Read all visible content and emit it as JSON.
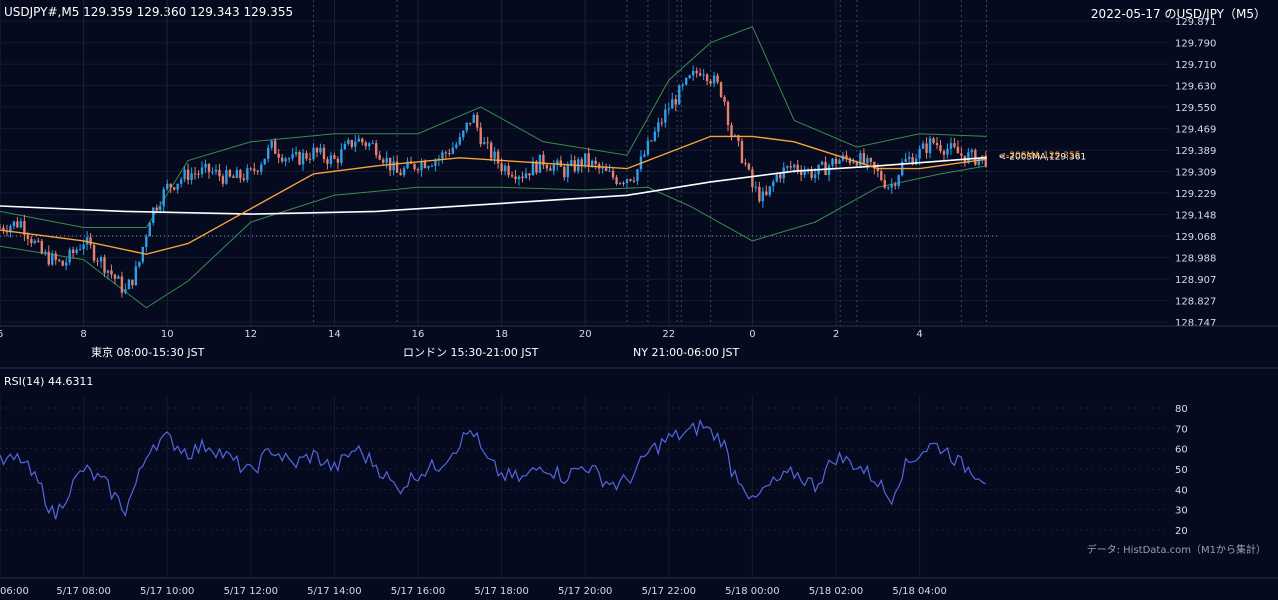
{
  "header": {
    "symbol_ohlc": "USDJPY#,M5 129.359 129.360 129.343 129.355",
    "date_title": "2022-05-17 のUSD/JPY（M5）"
  },
  "sessions": [
    {
      "label": "東京 08:00-15:30 JST",
      "color": "#1f4e7e"
    },
    {
      "label": "ロンドン 15:30-21:00 JST",
      "color": "#7a5416"
    },
    {
      "label": "NY 21:00-06:00 JST",
      "color": "#23613d"
    }
  ],
  "rsi_label": "RSI(14) 44.6311",
  "credit": "データ: HistData.com（M1から集計）",
  "ma_labels": {
    "ma200": "<-200SMA,129.361",
    "ma20": "<-20SMA,129.355"
  },
  "colors": {
    "bull": "#2f9ee6",
    "bear": "#e5806e",
    "ma200": "#ffffff",
    "ma20": "#f7a23a",
    "bands": "#3c8a4e",
    "rsi": "#5566e0"
  },
  "chart_data": {
    "type": "candlestick",
    "price_axis": {
      "ticks": [
        "129.871",
        "129.790",
        "129.710",
        "129.630",
        "129.550",
        "129.469",
        "129.389",
        "129.309",
        "129.229",
        "129.148",
        "129.068",
        "128.988",
        "128.907",
        "128.827",
        "128.747"
      ],
      "ylim": [
        128.747,
        129.871
      ]
    },
    "time_axis_hours": [
      "6",
      "8",
      "10",
      "12",
      "14",
      "16",
      "18",
      "20",
      "22",
      "0",
      "2",
      "4"
    ],
    "bottom_time_labels": [
      "06:00",
      "5/17 08:00",
      "5/17 10:00",
      "5/17 12:00",
      "5/17 14:00",
      "5/17 16:00",
      "5/17 18:00",
      "5/17 20:00",
      "5/17 22:00",
      "5/18 00:00",
      "5/18 02:00",
      "5/18 04:00"
    ],
    "reference_level": 129.068,
    "price_path": [
      [
        6.0,
        129.1
      ],
      [
        6.5,
        129.12
      ],
      [
        7.0,
        129.0
      ],
      [
        7.5,
        128.96
      ],
      [
        8.0,
        129.05
      ],
      [
        8.5,
        128.96
      ],
      [
        9.0,
        128.86
      ],
      [
        9.3,
        128.95
      ],
      [
        9.6,
        129.15
      ],
      [
        10.0,
        129.25
      ],
      [
        10.5,
        129.3
      ],
      [
        11.0,
        129.31
      ],
      [
        11.5,
        129.28
      ],
      [
        12.0,
        129.3
      ],
      [
        12.5,
        129.4
      ],
      [
        13.0,
        129.35
      ],
      [
        13.5,
        129.38
      ],
      [
        14.0,
        129.35
      ],
      [
        14.5,
        129.43
      ],
      [
        15.0,
        129.4
      ],
      [
        15.5,
        129.3
      ],
      [
        16.0,
        129.34
      ],
      [
        16.5,
        129.36
      ],
      [
        17.0,
        129.42
      ],
      [
        17.3,
        129.52
      ],
      [
        17.6,
        129.4
      ],
      [
        18.0,
        129.33
      ],
      [
        18.5,
        129.3
      ],
      [
        19.0,
        129.35
      ],
      [
        19.5,
        129.31
      ],
      [
        20.0,
        129.35
      ],
      [
        20.5,
        129.3
      ],
      [
        20.8,
        129.28
      ],
      [
        21.2,
        129.3
      ],
      [
        21.5,
        129.4
      ],
      [
        22.0,
        129.55
      ],
      [
        22.5,
        129.65
      ],
      [
        22.8,
        129.7
      ],
      [
        23.0,
        129.66
      ],
      [
        23.3,
        129.6
      ],
      [
        23.5,
        129.45
      ],
      [
        23.8,
        129.35
      ],
      [
        24.0,
        129.25
      ],
      [
        24.3,
        129.2
      ],
      [
        24.6,
        129.3
      ],
      [
        25.0,
        129.33
      ],
      [
        25.5,
        129.3
      ],
      [
        26.0,
        129.35
      ],
      [
        26.5,
        129.36
      ],
      [
        27.0,
        129.3
      ],
      [
        27.3,
        129.25
      ],
      [
        27.6,
        129.34
      ],
      [
        28.0,
        129.38
      ],
      [
        28.3,
        129.42
      ],
      [
        28.6,
        129.4
      ],
      [
        29.0,
        129.37
      ],
      [
        29.3,
        129.36
      ],
      [
        29.6,
        129.355
      ]
    ],
    "ma200": [
      [
        6.0,
        129.18
      ],
      [
        9.0,
        129.16
      ],
      [
        12.0,
        129.15
      ],
      [
        15.0,
        129.16
      ],
      [
        18.0,
        129.19
      ],
      [
        21.0,
        129.22
      ],
      [
        23.0,
        129.27
      ],
      [
        25.0,
        129.31
      ],
      [
        27.0,
        129.33
      ],
      [
        29.6,
        129.361
      ]
    ],
    "ma20": [
      [
        6.0,
        129.09
      ],
      [
        8.0,
        129.05
      ],
      [
        9.5,
        129.0
      ],
      [
        10.5,
        129.04
      ],
      [
        12.0,
        129.17
      ],
      [
        13.5,
        129.3
      ],
      [
        15.0,
        129.33
      ],
      [
        17.0,
        129.36
      ],
      [
        19.0,
        129.34
      ],
      [
        21.0,
        129.32
      ],
      [
        22.0,
        129.38
      ],
      [
        23.0,
        129.44
      ],
      [
        24.0,
        129.44
      ],
      [
        25.0,
        129.42
      ],
      [
        26.0,
        129.37
      ],
      [
        27.0,
        129.32
      ],
      [
        28.0,
        129.32
      ],
      [
        29.6,
        129.355
      ]
    ],
    "bb_upper": [
      [
        6.0,
        129.16
      ],
      [
        8.0,
        129.1
      ],
      [
        9.5,
        129.1
      ],
      [
        10.5,
        129.35
      ],
      [
        12.0,
        129.42
      ],
      [
        14.0,
        129.45
      ],
      [
        16.0,
        129.45
      ],
      [
        17.5,
        129.55
      ],
      [
        19.0,
        129.42
      ],
      [
        21.0,
        129.37
      ],
      [
        22.0,
        129.65
      ],
      [
        23.0,
        129.79
      ],
      [
        24.0,
        129.85
      ],
      [
        25.0,
        129.5
      ],
      [
        26.5,
        129.4
      ],
      [
        28.0,
        129.45
      ],
      [
        29.6,
        129.44
      ]
    ],
    "bb_lower": [
      [
        6.0,
        129.03
      ],
      [
        8.0,
        128.98
      ],
      [
        9.5,
        128.8
      ],
      [
        10.5,
        128.9
      ],
      [
        12.0,
        129.12
      ],
      [
        14.0,
        129.22
      ],
      [
        16.0,
        129.25
      ],
      [
        18.0,
        129.25
      ],
      [
        20.0,
        129.24
      ],
      [
        21.5,
        129.25
      ],
      [
        22.5,
        129.18
      ],
      [
        24.0,
        129.05
      ],
      [
        25.5,
        129.12
      ],
      [
        27.0,
        129.25
      ],
      [
        28.5,
        129.3
      ],
      [
        29.6,
        129.33
      ]
    ],
    "rsi": {
      "ticks": [
        "80",
        "70",
        "60",
        "50",
        "40",
        "30",
        "20"
      ],
      "ylim": [
        20,
        80
      ],
      "values": [
        [
          6.0,
          53
        ],
        [
          6.5,
          55
        ],
        [
          7.0,
          40
        ],
        [
          7.3,
          26
        ],
        [
          7.6,
          38
        ],
        [
          8.0,
          50
        ],
        [
          8.5,
          43
        ],
        [
          9.0,
          30
        ],
        [
          9.3,
          45
        ],
        [
          9.6,
          62
        ],
        [
          10.0,
          65
        ],
        [
          10.5,
          58
        ],
        [
          11.0,
          62
        ],
        [
          11.5,
          55
        ],
        [
          12.0,
          48
        ],
        [
          12.5,
          60
        ],
        [
          13.0,
          52
        ],
        [
          13.5,
          57
        ],
        [
          14.0,
          50
        ],
        [
          14.5,
          60
        ],
        [
          15.0,
          52
        ],
        [
          15.5,
          40
        ],
        [
          16.0,
          48
        ],
        [
          16.5,
          52
        ],
        [
          17.0,
          63
        ],
        [
          17.3,
          70
        ],
        [
          17.6,
          55
        ],
        [
          18.0,
          47
        ],
        [
          18.5,
          45
        ],
        [
          19.0,
          52
        ],
        [
          19.5,
          46
        ],
        [
          20.0,
          52
        ],
        [
          20.5,
          44
        ],
        [
          20.8,
          42
        ],
        [
          21.2,
          48
        ],
        [
          21.5,
          58
        ],
        [
          22.0,
          65
        ],
        [
          22.5,
          68
        ],
        [
          22.8,
          72
        ],
        [
          23.0,
          68
        ],
        [
          23.3,
          64
        ],
        [
          23.5,
          50
        ],
        [
          23.8,
          43
        ],
        [
          24.0,
          33
        ],
        [
          24.3,
          40
        ],
        [
          24.6,
          44
        ],
        [
          25.0,
          48
        ],
        [
          25.5,
          42
        ],
        [
          26.0,
          56
        ],
        [
          26.5,
          52
        ],
        [
          27.0,
          44
        ],
        [
          27.3,
          35
        ],
        [
          27.6,
          50
        ],
        [
          28.0,
          58
        ],
        [
          28.3,
          62
        ],
        [
          28.6,
          60
        ],
        [
          29.0,
          52
        ],
        [
          29.3,
          49
        ],
        [
          29.6,
          45
        ]
      ]
    }
  }
}
